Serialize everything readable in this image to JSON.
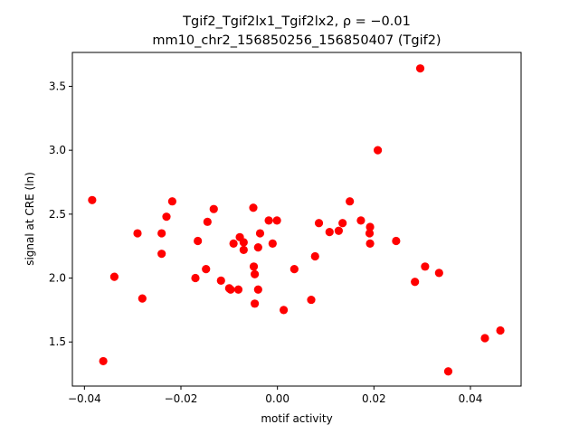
{
  "chart_data": {
    "type": "scatter",
    "title_line1": "Tgif2_Tgif2lx1_Tgif2lx2, ρ = −0.01",
    "title_line2": "mm10_chr2_156850256_156850407 (Tgif2)",
    "xlabel": "motif activity",
    "ylabel": "signal at CRE (ln)",
    "xlim": [
      -0.0425,
      0.0505
    ],
    "ylim": [
      1.155,
      3.765
    ],
    "xticks": [
      -0.04,
      -0.02,
      0.0,
      0.02,
      0.04
    ],
    "xtick_labels": [
      "−0.04",
      "−0.02",
      "0.00",
      "0.02",
      "0.04"
    ],
    "yticks": [
      1.5,
      2.0,
      2.5,
      3.0,
      3.5
    ],
    "ytick_labels": [
      "1.5",
      "2.0",
      "2.5",
      "3.0",
      "3.5"
    ],
    "grid": false,
    "marker_color": "#ff0000",
    "points": [
      {
        "x": -0.0384,
        "y": 2.61
      },
      {
        "x": -0.0361,
        "y": 1.35
      },
      {
        "x": -0.0338,
        "y": 2.01
      },
      {
        "x": -0.029,
        "y": 2.35
      },
      {
        "x": -0.028,
        "y": 1.84
      },
      {
        "x": -0.024,
        "y": 2.35
      },
      {
        "x": -0.024,
        "y": 2.19
      },
      {
        "x": -0.023,
        "y": 2.48
      },
      {
        "x": -0.0218,
        "y": 2.6
      },
      {
        "x": -0.017,
        "y": 2.0
      },
      {
        "x": -0.0165,
        "y": 2.29
      },
      {
        "x": -0.0148,
        "y": 2.07
      },
      {
        "x": -0.0145,
        "y": 2.44
      },
      {
        "x": -0.0132,
        "y": 2.54
      },
      {
        "x": -0.0117,
        "y": 1.98
      },
      {
        "x": -0.01,
        "y": 1.92
      },
      {
        "x": -0.0097,
        "y": 1.91
      },
      {
        "x": -0.0091,
        "y": 2.27
      },
      {
        "x": -0.0081,
        "y": 1.91
      },
      {
        "x": -0.0078,
        "y": 2.32
      },
      {
        "x": -0.007,
        "y": 2.28
      },
      {
        "x": -0.007,
        "y": 2.22
      },
      {
        "x": -0.005,
        "y": 2.55
      },
      {
        "x": -0.0049,
        "y": 2.09
      },
      {
        "x": -0.0047,
        "y": 2.03
      },
      {
        "x": -0.0047,
        "y": 1.8
      },
      {
        "x": -0.004,
        "y": 2.24
      },
      {
        "x": -0.004,
        "y": 1.91
      },
      {
        "x": -0.0036,
        "y": 2.35
      },
      {
        "x": -0.0018,
        "y": 2.45
      },
      {
        "x": -0.001,
        "y": 2.27
      },
      {
        "x": -0.0001,
        "y": 2.45
      },
      {
        "x": 0.0013,
        "y": 1.75
      },
      {
        "x": 0.0035,
        "y": 2.07
      },
      {
        "x": 0.007,
        "y": 1.83
      },
      {
        "x": 0.0078,
        "y": 2.17
      },
      {
        "x": 0.0086,
        "y": 2.43
      },
      {
        "x": 0.0108,
        "y": 2.36
      },
      {
        "x": 0.0127,
        "y": 2.37
      },
      {
        "x": 0.0135,
        "y": 2.43
      },
      {
        "x": 0.015,
        "y": 2.6
      },
      {
        "x": 0.0173,
        "y": 2.45
      },
      {
        "x": 0.0191,
        "y": 2.35
      },
      {
        "x": 0.0192,
        "y": 2.4
      },
      {
        "x": 0.0192,
        "y": 2.27
      },
      {
        "x": 0.0208,
        "y": 3.0
      },
      {
        "x": 0.0246,
        "y": 2.29
      },
      {
        "x": 0.0285,
        "y": 1.97
      },
      {
        "x": 0.0296,
        "y": 3.64
      },
      {
        "x": 0.0306,
        "y": 2.09
      },
      {
        "x": 0.0335,
        "y": 2.04
      },
      {
        "x": 0.0354,
        "y": 1.27
      },
      {
        "x": 0.043,
        "y": 1.53
      },
      {
        "x": 0.0462,
        "y": 1.59
      }
    ]
  }
}
